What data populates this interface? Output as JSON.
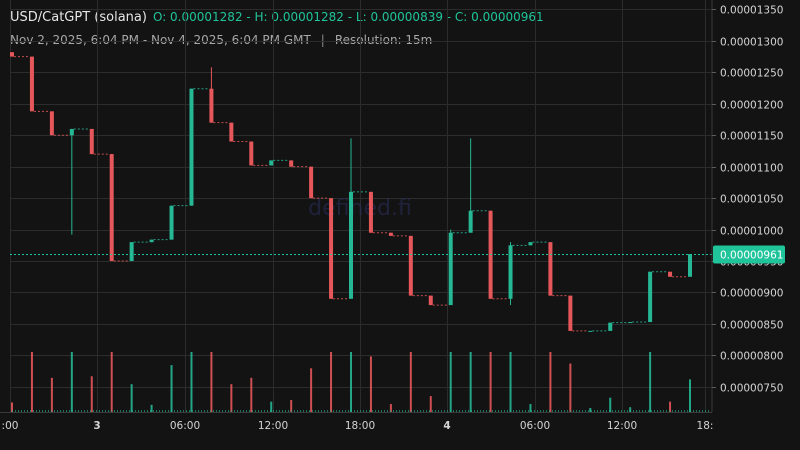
{
  "header": {
    "symbol": "USD/CatGPT (solana)",
    "ohlc": "O: 0.00001282 - H: 0.00001282 - L: 0.00000839 - C: 0.00000961",
    "range": "Nov 2, 2025, 6:04 PM - Nov 4, 2025, 6:04 PM GMT",
    "separator": "|",
    "resolution": "Resolution: 15m"
  },
  "watermark": "defined.fi",
  "current_price_label": "0.00000961",
  "colors": {
    "up": "#26b795",
    "down": "#e5575a",
    "grid": "#2c2c2c",
    "bg": "#131313",
    "price_tag": "#20c49a"
  },
  "chart_data": {
    "type": "candlestick",
    "ylim": [
      7.1e-06,
      1.365e-05
    ],
    "y_ticks": [
      "0.00001350",
      "0.00001300",
      "0.00001250",
      "0.00001200",
      "0.00001150",
      "0.00001100",
      "0.00001050",
      "0.00001000",
      "0.00000950",
      "0.00000900",
      "0.00000850",
      "0.00000800",
      "0.00000750"
    ],
    "x_ticks": [
      {
        "label": ":00",
        "bold": false
      },
      {
        "label": "3",
        "bold": true
      },
      {
        "label": "06:00",
        "bold": false
      },
      {
        "label": "12:00",
        "bold": false
      },
      {
        "label": "18:00",
        "bold": false
      },
      {
        "label": "4",
        "bold": true
      },
      {
        "label": "06:00",
        "bold": false
      },
      {
        "label": "12:00",
        "bold": false
      },
      {
        "label": "18:",
        "bold": false
      }
    ],
    "current_price": 9.61e-06,
    "candles": [
      {
        "o": 1.282e-05,
        "h": 1.282e-05,
        "l": 1.275e-05,
        "c": 1.275e-05
      },
      {
        "o": 1.275e-05,
        "h": 1.275e-05,
        "l": 1.188e-05,
        "c": 1.188e-05
      },
      {
        "o": 1.188e-05,
        "h": 1.188e-05,
        "l": 1.15e-05,
        "c": 1.15e-05
      },
      {
        "o": 1.15e-05,
        "h": 1.16e-05,
        "l": 9.92e-06,
        "c": 1.16e-05
      },
      {
        "o": 1.16e-05,
        "h": 1.16e-05,
        "l": 1.12e-05,
        "c": 1.12e-05
      },
      {
        "o": 1.12e-05,
        "h": 1.12e-05,
        "l": 9.5e-06,
        "c": 9.5e-06
      },
      {
        "o": 9.5e-06,
        "h": 9.8e-06,
        "l": 9.5e-06,
        "c": 9.8e-06
      },
      {
        "o": 9.8e-06,
        "h": 9.84e-06,
        "l": 9.8e-06,
        "c": 9.84e-06
      },
      {
        "o": 9.84e-06,
        "h": 1.038e-05,
        "l": 9.84e-06,
        "c": 1.038e-05
      },
      {
        "o": 1.038e-05,
        "h": 1.224e-05,
        "l": 1.038e-05,
        "c": 1.224e-05
      },
      {
        "o": 1.224e-05,
        "h": 1.258e-05,
        "l": 1.17e-05,
        "c": 1.17e-05
      },
      {
        "o": 1.17e-05,
        "h": 1.17e-05,
        "l": 1.14e-05,
        "c": 1.14e-05
      },
      {
        "o": 1.14e-05,
        "h": 1.14e-05,
        "l": 1.102e-05,
        "c": 1.102e-05
      },
      {
        "o": 1.102e-05,
        "h": 1.11e-05,
        "l": 1.102e-05,
        "c": 1.11e-05
      },
      {
        "o": 1.11e-05,
        "h": 1.11e-05,
        "l": 1.1e-05,
        "c": 1.1e-05
      },
      {
        "o": 1.1e-05,
        "h": 1.1e-05,
        "l": 1.05e-05,
        "c": 1.05e-05
      },
      {
        "o": 1.05e-05,
        "h": 1.05e-05,
        "l": 8.9e-06,
        "c": 8.9e-06
      },
      {
        "o": 8.9e-06,
        "h": 1.145e-05,
        "l": 8.9e-06,
        "c": 1.06e-05
      },
      {
        "o": 1.06e-05,
        "h": 1.06e-05,
        "l": 9.95e-06,
        "c": 9.95e-06
      },
      {
        "o": 9.95e-06,
        "h": 9.95e-06,
        "l": 9.9e-06,
        "c": 9.9e-06
      },
      {
        "o": 9.9e-06,
        "h": 9.9e-06,
        "l": 8.95e-06,
        "c": 8.95e-06
      },
      {
        "o": 8.95e-06,
        "h": 8.95e-06,
        "l": 8.8e-06,
        "c": 8.8e-06
      },
      {
        "o": 8.8e-06,
        "h": 1e-05,
        "l": 8.8e-06,
        "c": 9.95e-06
      },
      {
        "o": 9.95e-06,
        "h": 1.145e-05,
        "l": 9.95e-06,
        "c": 1.03e-05
      },
      {
        "o": 1.03e-05,
        "h": 1.03e-05,
        "l": 8.9e-06,
        "c": 8.9e-06
      },
      {
        "o": 8.9e-06,
        "h": 9.8e-06,
        "l": 8.8e-06,
        "c": 9.75e-06
      },
      {
        "o": 9.75e-06,
        "h": 9.8e-06,
        "l": 9.75e-06,
        "c": 9.8e-06
      },
      {
        "o": 9.8e-06,
        "h": 9.8e-06,
        "l": 8.95e-06,
        "c": 8.95e-06
      },
      {
        "o": 8.95e-06,
        "h": 8.95e-06,
        "l": 8.39e-06,
        "c": 8.39e-06
      },
      {
        "o": 8.39e-06,
        "h": 8.39e-06,
        "l": 8.39e-06,
        "c": 8.39e-06
      },
      {
        "o": 8.39e-06,
        "h": 8.52e-06,
        "l": 8.39e-06,
        "c": 8.52e-06
      },
      {
        "o": 8.52e-06,
        "h": 8.53e-06,
        "l": 8.52e-06,
        "c": 8.53e-06
      },
      {
        "o": 8.53e-06,
        "h": 9.33e-06,
        "l": 8.53e-06,
        "c": 9.33e-06
      },
      {
        "o": 9.33e-06,
        "h": 9.33e-06,
        "l": 9.25e-06,
        "c": 9.25e-06
      },
      {
        "o": 9.25e-06,
        "h": 9.61e-06,
        "l": 9.25e-06,
        "c": 9.61e-06
      }
    ]
  }
}
